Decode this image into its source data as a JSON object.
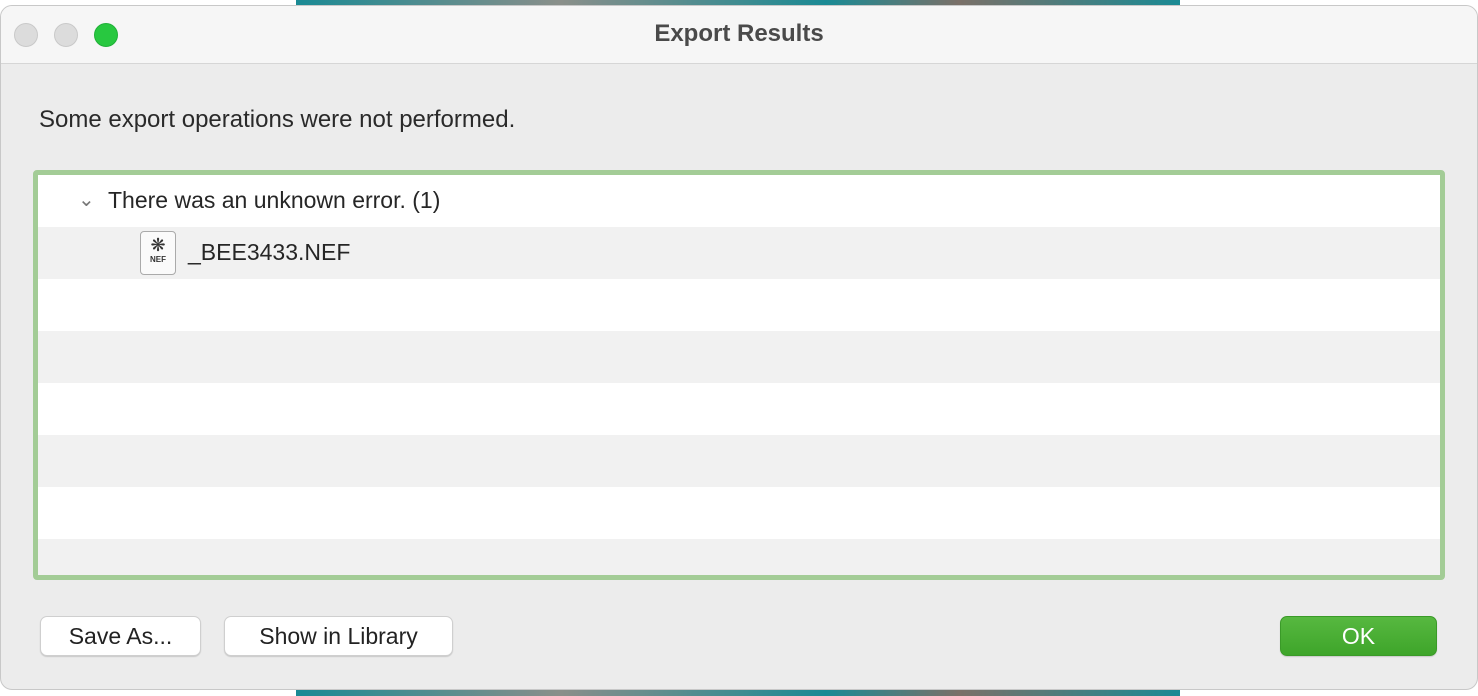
{
  "window": {
    "title": "Export Results",
    "traffic_lights": {
      "close": "#dcdcdc",
      "minimize": "#dcdcdc",
      "zoom": "#28c840"
    }
  },
  "message": "Some export operations were not performed.",
  "results": {
    "group": {
      "label": "There was an unknown error. (1)",
      "expanded": true
    },
    "files": [
      {
        "name": "_BEE3433.NEF",
        "icon": "nef-raw-file-icon",
        "icon_label": "NEF"
      }
    ],
    "focus_ring_color": "#a3cc96"
  },
  "buttons": {
    "save_as": "Save As...",
    "show_in_library": "Show in Library",
    "ok": "OK",
    "ok_color": "#4caf35"
  }
}
